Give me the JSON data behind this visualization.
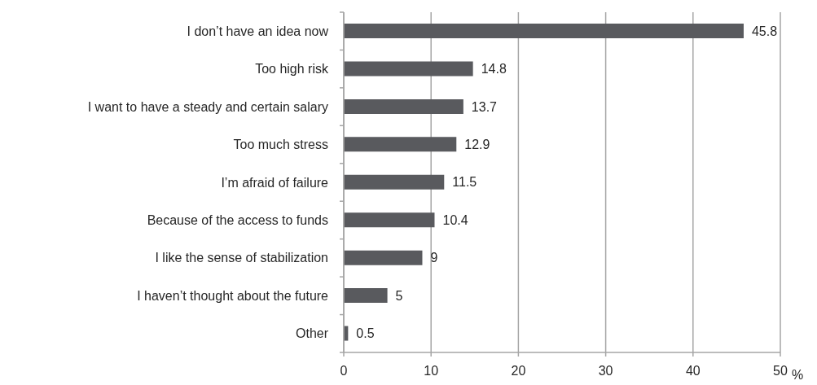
{
  "chart_data": {
    "type": "bar",
    "orientation": "horizontal",
    "categories": [
      "I don’t have an idea now",
      "Too high risk",
      "I want to have a steady and certain salary",
      "Too much stress",
      "I’m afraid of failure",
      "Because of the access to funds",
      "I like the sense of stabilization",
      "I haven’t thought about the future",
      "Other"
    ],
    "values": [
      45.8,
      14.8,
      13.7,
      12.9,
      11.5,
      10.4,
      9,
      5,
      0.5
    ],
    "color": "#595a5e",
    "xlabel": "%",
    "xlim": [
      0,
      50
    ],
    "xticks": [
      0,
      10,
      20,
      30,
      40,
      50
    ],
    "grid": "x",
    "data_labels": true
  }
}
